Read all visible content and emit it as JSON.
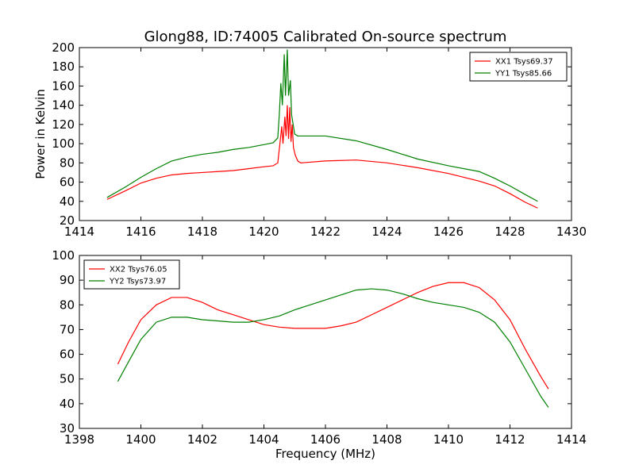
{
  "chart_data": [
    {
      "type": "line",
      "title": "Glong88, ID:74005 Calibrated On-source spectrum",
      "xlabel": "",
      "ylabel": "Power in Kelvin",
      "xlim": [
        1414,
        1430
      ],
      "ylim": [
        20,
        200
      ],
      "xticks": [
        1414,
        1416,
        1418,
        1420,
        1422,
        1424,
        1426,
        1428,
        1430
      ],
      "yticks": [
        20,
        40,
        60,
        80,
        100,
        120,
        140,
        160,
        180,
        200
      ],
      "legend_position": "top-right",
      "grid": false,
      "series": [
        {
          "name": "XX1 Tsys69.37",
          "color": "#ff0000",
          "points": [
            [
              1414.9,
              42
            ],
            [
              1415.5,
              51
            ],
            [
              1416,
              59
            ],
            [
              1416.5,
              64
            ],
            [
              1417,
              67.5
            ],
            [
              1417.5,
              69
            ],
            [
              1418,
              70
            ],
            [
              1418.5,
              71
            ],
            [
              1419,
              72
            ],
            [
              1419.5,
              74
            ],
            [
              1420,
              76
            ],
            [
              1420.3,
              77
            ],
            [
              1420.45,
              80
            ],
            [
              1420.52,
              100
            ],
            [
              1420.58,
              118
            ],
            [
              1420.62,
              100
            ],
            [
              1420.68,
              128
            ],
            [
              1420.72,
              108
            ],
            [
              1420.76,
              140
            ],
            [
              1420.8,
              105
            ],
            [
              1420.84,
              138
            ],
            [
              1420.88,
              102
            ],
            [
              1420.92,
              120
            ],
            [
              1420.96,
              96
            ],
            [
              1421.02,
              88
            ],
            [
              1421.1,
              82
            ],
            [
              1421.2,
              80
            ],
            [
              1422,
              82
            ],
            [
              1423,
              83
            ],
            [
              1424,
              80
            ],
            [
              1425,
              75
            ],
            [
              1426,
              69
            ],
            [
              1427,
              61
            ],
            [
              1427.5,
              56
            ],
            [
              1428,
              48
            ],
            [
              1428.5,
              39
            ],
            [
              1428.9,
              33
            ]
          ]
        },
        {
          "name": "YY1 Tsys85.66",
          "color": "#008000",
          "points": [
            [
              1414.9,
              44
            ],
            [
              1415.5,
              55
            ],
            [
              1416,
              65
            ],
            [
              1416.5,
              74
            ],
            [
              1417,
              82
            ],
            [
              1417.5,
              86
            ],
            [
              1418,
              89
            ],
            [
              1418.5,
              91
            ],
            [
              1419,
              94
            ],
            [
              1419.5,
              96
            ],
            [
              1420,
              99
            ],
            [
              1420.3,
              101
            ],
            [
              1420.45,
              106
            ],
            [
              1420.5,
              130
            ],
            [
              1420.55,
              163
            ],
            [
              1420.6,
              140
            ],
            [
              1420.66,
              193
            ],
            [
              1420.7,
              150
            ],
            [
              1420.76,
              198
            ],
            [
              1420.8,
              150
            ],
            [
              1420.86,
              166
            ],
            [
              1420.9,
              130
            ],
            [
              1420.95,
              120
            ],
            [
              1421,
              110
            ],
            [
              1421.1,
              108
            ],
            [
              1422,
              108
            ],
            [
              1423,
              103
            ],
            [
              1424,
              94
            ],
            [
              1425,
              84
            ],
            [
              1426,
              77
            ],
            [
              1427,
              71
            ],
            [
              1427.5,
              64
            ],
            [
              1428,
              56
            ],
            [
              1428.5,
              47
            ],
            [
              1428.9,
              40
            ]
          ]
        }
      ]
    },
    {
      "type": "line",
      "title": "",
      "xlabel": "Frequency (MHz)",
      "ylabel": "",
      "xlim": [
        1398,
        1414
      ],
      "ylim": [
        30,
        100
      ],
      "xticks": [
        1398,
        1400,
        1402,
        1404,
        1406,
        1408,
        1410,
        1412,
        1414
      ],
      "yticks": [
        30,
        40,
        50,
        60,
        70,
        80,
        90,
        100
      ],
      "legend_position": "top-left",
      "grid": false,
      "series": [
        {
          "name": "XX2 Tsys76.05",
          "color": "#ff0000",
          "points": [
            [
              1399.25,
              56
            ],
            [
              1399.6,
              65
            ],
            [
              1400,
              74
            ],
            [
              1400.5,
              80
            ],
            [
              1401,
              83
            ],
            [
              1401.5,
              83
            ],
            [
              1402,
              81
            ],
            [
              1402.5,
              78
            ],
            [
              1403,
              76
            ],
            [
              1403.5,
              74
            ],
            [
              1404,
              72
            ],
            [
              1404.5,
              71
            ],
            [
              1405,
              70.5
            ],
            [
              1405.5,
              70.5
            ],
            [
              1406,
              70.5
            ],
            [
              1406.5,
              71.5
            ],
            [
              1407,
              73
            ],
            [
              1407.5,
              76
            ],
            [
              1408,
              79
            ],
            [
              1408.5,
              82
            ],
            [
              1409,
              85
            ],
            [
              1409.5,
              87.5
            ],
            [
              1410,
              89
            ],
            [
              1410.5,
              89
            ],
            [
              1411,
              87
            ],
            [
              1411.5,
              82
            ],
            [
              1412,
              74
            ],
            [
              1412.5,
              62
            ],
            [
              1413,
              51
            ],
            [
              1413.25,
              46
            ]
          ]
        },
        {
          "name": "YY2 Tsys73.97",
          "color": "#008000",
          "points": [
            [
              1399.25,
              49
            ],
            [
              1399.6,
              57
            ],
            [
              1400,
              66
            ],
            [
              1400.5,
              73
            ],
            [
              1401,
              75
            ],
            [
              1401.5,
              75
            ],
            [
              1402,
              74
            ],
            [
              1402.5,
              73.5
            ],
            [
              1403,
              73
            ],
            [
              1403.5,
              73
            ],
            [
              1404,
              74
            ],
            [
              1404.5,
              75.5
            ],
            [
              1405,
              78
            ],
            [
              1405.5,
              80
            ],
            [
              1406,
              82
            ],
            [
              1406.5,
              84
            ],
            [
              1407,
              86
            ],
            [
              1407.5,
              86.5
            ],
            [
              1408,
              86
            ],
            [
              1408.5,
              84.5
            ],
            [
              1409,
              82.5
            ],
            [
              1409.5,
              81
            ],
            [
              1410,
              80
            ],
            [
              1410.5,
              79
            ],
            [
              1411,
              77
            ],
            [
              1411.5,
              73
            ],
            [
              1412,
              65
            ],
            [
              1412.5,
              54
            ],
            [
              1413,
              43
            ],
            [
              1413.25,
              38.5
            ]
          ]
        }
      ]
    }
  ]
}
